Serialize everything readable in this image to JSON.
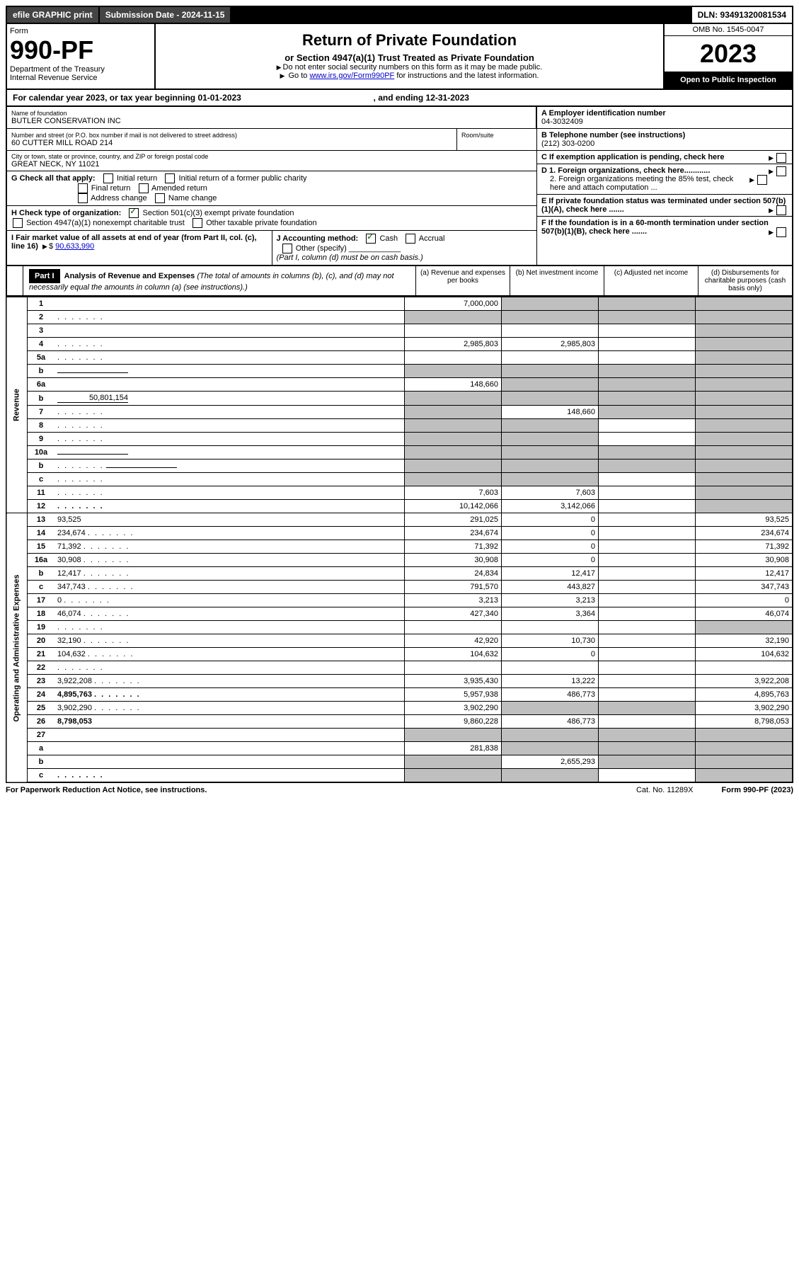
{
  "topbar": {
    "efile": "efile GRAPHIC print",
    "submission_label": "Submission Date - 2024-11-15",
    "dln": "DLN: 93491320081534"
  },
  "header": {
    "form_word": "Form",
    "form_no": "990-PF",
    "dept": "Department of the Treasury",
    "irs": "Internal Revenue Service",
    "title": "Return of Private Foundation",
    "subtitle": "or Section 4947(a)(1) Trust Treated as Private Foundation",
    "note1": "Do not enter social security numbers on this form as it may be made public.",
    "note2_pre": "Go to ",
    "note2_link": "www.irs.gov/Form990PF",
    "note2_post": " for instructions and the latest information.",
    "omb": "OMB No. 1545-0047",
    "year": "2023",
    "open": "Open to Public Inspection"
  },
  "cal": {
    "text_pre": "For calendar year 2023, or tax year beginning ",
    "begin": "01-01-2023",
    "text_mid": ", and ending ",
    "end": "12-31-2023"
  },
  "name": {
    "label": "Name of foundation",
    "value": "BUTLER CONSERVATION INC"
  },
  "addr": {
    "label": "Number and street (or P.O. box number if mail is not delivered to street address)",
    "value": "60 CUTTER MILL ROAD 214",
    "room_label": "Room/suite"
  },
  "city": {
    "label": "City or town, state or province, country, and ZIP or foreign postal code",
    "value": "GREAT NECK, NY  11021"
  },
  "a": {
    "label": "A Employer identification number",
    "value": "04-3032409"
  },
  "b": {
    "label": "B Telephone number (see instructions)",
    "value": "(212) 303-0200"
  },
  "c": {
    "label": "C If exemption application is pending, check here"
  },
  "d": {
    "d1": "D 1. Foreign organizations, check here............",
    "d2": "2. Foreign organizations meeting the 85% test, check here and attach computation ..."
  },
  "e": {
    "label": "E  If private foundation status was terminated under section 507(b)(1)(A), check here ......."
  },
  "f": {
    "label": "F  If the foundation is in a 60-month termination under section 507(b)(1)(B), check here ......."
  },
  "g": {
    "label": "G Check all that apply:",
    "opts": [
      "Initial return",
      "Initial return of a former public charity",
      "Final return",
      "Amended return",
      "Address change",
      "Name change"
    ]
  },
  "h": {
    "label": "H Check type of organization:",
    "opt1": "Section 501(c)(3) exempt private foundation",
    "opt2": "Section 4947(a)(1) nonexempt charitable trust",
    "opt3": "Other taxable private foundation"
  },
  "i": {
    "label": "I Fair market value of all assets at end of year (from Part II, col. (c), line 16)",
    "value_pre": "$",
    "value": "90,633,990"
  },
  "j": {
    "label": "J Accounting method:",
    "cash": "Cash",
    "accrual": "Accrual",
    "other": "Other (specify)",
    "note": "(Part I, column (d) must be on cash basis.)"
  },
  "part1": {
    "badge": "Part I",
    "title": "Analysis of Revenue and Expenses",
    "title_note": "(The total of amounts in columns (b), (c), and (d) may not necessarily equal the amounts in column (a) (see instructions).)",
    "cols": {
      "a": "(a) Revenue and expenses per books",
      "b": "(b) Net investment income",
      "c": "(c) Adjusted net income",
      "d": "(d) Disbursements for charitable purposes (cash basis only)"
    }
  },
  "sections": {
    "revenue": "Revenue",
    "expenses": "Operating and Administrative Expenses"
  },
  "rows": [
    {
      "n": "1",
      "d": "",
      "a": "7,000,000",
      "b": "",
      "c": "",
      "shade_b": true,
      "shade_c": true,
      "shade_d": true
    },
    {
      "n": "2",
      "d": "",
      "a": "",
      "b": "",
      "c": "",
      "shade_a": true,
      "shade_b": true,
      "shade_c": true,
      "shade_d": true,
      "dots": true
    },
    {
      "n": "3",
      "d": "",
      "a": "",
      "b": "",
      "c": "",
      "shade_d": true
    },
    {
      "n": "4",
      "d": "",
      "a": "2,985,803",
      "b": "2,985,803",
      "c": "",
      "shade_d": true,
      "dots": true
    },
    {
      "n": "5a",
      "d": "",
      "a": "",
      "b": "",
      "c": "",
      "shade_d": true,
      "dots": true
    },
    {
      "n": "b",
      "d": "",
      "a": "",
      "b": "",
      "c": "",
      "shade_a": true,
      "shade_b": true,
      "shade_c": true,
      "shade_d": true,
      "inline": true
    },
    {
      "n": "6a",
      "d": "",
      "a": "148,660",
      "b": "",
      "c": "",
      "shade_b": true,
      "shade_c": true,
      "shade_d": true
    },
    {
      "n": "b",
      "d": "",
      "a": "",
      "b": "",
      "c": "",
      "shade_a": true,
      "shade_b": true,
      "shade_c": true,
      "shade_d": true,
      "inline_val": "50,801,154"
    },
    {
      "n": "7",
      "d": "",
      "a": "",
      "b": "148,660",
      "c": "",
      "shade_a": true,
      "shade_c": true,
      "shade_d": true,
      "dots": true
    },
    {
      "n": "8",
      "d": "",
      "a": "",
      "b": "",
      "c": "",
      "shade_a": true,
      "shade_b": true,
      "shade_d": true,
      "dots": true
    },
    {
      "n": "9",
      "d": "",
      "a": "",
      "b": "",
      "c": "",
      "shade_a": true,
      "shade_b": true,
      "shade_d": true,
      "dots": true
    },
    {
      "n": "10a",
      "d": "",
      "a": "",
      "b": "",
      "c": "",
      "shade_a": true,
      "shade_b": true,
      "shade_c": true,
      "shade_d": true,
      "inline": true
    },
    {
      "n": "b",
      "d": "",
      "a": "",
      "b": "",
      "c": "",
      "shade_a": true,
      "shade_b": true,
      "shade_c": true,
      "shade_d": true,
      "inline": true,
      "dots": true
    },
    {
      "n": "c",
      "d": "",
      "a": "",
      "b": "",
      "c": "",
      "shade_a": true,
      "shade_b": true,
      "shade_d": true,
      "dots": true
    },
    {
      "n": "11",
      "d": "",
      "a": "7,603",
      "b": "7,603",
      "c": "",
      "shade_d": true,
      "dots": true
    },
    {
      "n": "12",
      "d": "",
      "a": "10,142,066",
      "b": "3,142,066",
      "c": "",
      "shade_d": true,
      "bold": true,
      "dots": true
    },
    {
      "n": "13",
      "d": "93,525",
      "a": "291,025",
      "b": "0",
      "c": "",
      "sec": "exp"
    },
    {
      "n": "14",
      "d": "234,674",
      "a": "234,674",
      "b": "0",
      "c": "",
      "dots": true
    },
    {
      "n": "15",
      "d": "71,392",
      "a": "71,392",
      "b": "0",
      "c": "",
      "dots": true
    },
    {
      "n": "16a",
      "d": "30,908",
      "a": "30,908",
      "b": "0",
      "c": "",
      "dots": true
    },
    {
      "n": "b",
      "d": "12,417",
      "a": "24,834",
      "b": "12,417",
      "c": "",
      "dots": true
    },
    {
      "n": "c",
      "d": "347,743",
      "a": "791,570",
      "b": "443,827",
      "c": "",
      "dots": true
    },
    {
      "n": "17",
      "d": "0",
      "a": "3,213",
      "b": "3,213",
      "c": "",
      "dots": true
    },
    {
      "n": "18",
      "d": "46,074",
      "a": "427,340",
      "b": "3,364",
      "c": "",
      "dots": true
    },
    {
      "n": "19",
      "d": "",
      "a": "",
      "b": "",
      "c": "",
      "shade_d": true,
      "dots": true
    },
    {
      "n": "20",
      "d": "32,190",
      "a": "42,920",
      "b": "10,730",
      "c": "",
      "dots": true
    },
    {
      "n": "21",
      "d": "104,632",
      "a": "104,632",
      "b": "0",
      "c": "",
      "dots": true
    },
    {
      "n": "22",
      "d": "",
      "a": "",
      "b": "",
      "c": "",
      "dots": true
    },
    {
      "n": "23",
      "d": "3,922,208",
      "a": "3,935,430",
      "b": "13,222",
      "c": "",
      "dots": true
    },
    {
      "n": "24",
      "d": "4,895,763",
      "a": "5,957,938",
      "b": "486,773",
      "c": "",
      "bold": true,
      "dots": true
    },
    {
      "n": "25",
      "d": "3,902,290",
      "a": "3,902,290",
      "b": "",
      "c": "",
      "shade_b": true,
      "shade_c": true,
      "dots": true
    },
    {
      "n": "26",
      "d": "8,798,053",
      "a": "9,860,228",
      "b": "486,773",
      "c": "",
      "bold": true
    },
    {
      "n": "27",
      "d": "",
      "a": "",
      "b": "",
      "c": "",
      "shade_a": true,
      "shade_b": true,
      "shade_c": true,
      "shade_d": true
    },
    {
      "n": "a",
      "d": "",
      "a": "281,838",
      "b": "",
      "c": "",
      "shade_b": true,
      "shade_c": true,
      "shade_d": true,
      "bold": true
    },
    {
      "n": "b",
      "d": "",
      "a": "",
      "b": "2,655,293",
      "c": "",
      "shade_a": true,
      "shade_c": true,
      "shade_d": true,
      "bold": true
    },
    {
      "n": "c",
      "d": "",
      "a": "",
      "b": "",
      "c": "",
      "shade_a": true,
      "shade_b": true,
      "shade_d": true,
      "bold": true,
      "dots": true
    }
  ],
  "footer": {
    "left": "For Paperwork Reduction Act Notice, see instructions.",
    "mid": "Cat. No. 11289X",
    "right": "Form 990-PF (2023)"
  }
}
